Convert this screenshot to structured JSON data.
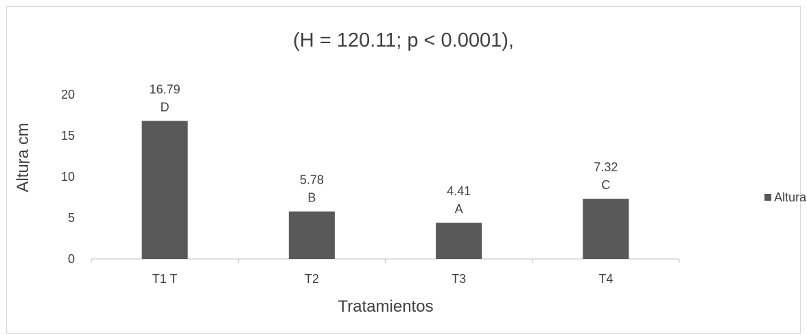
{
  "chart_data": {
    "type": "bar",
    "title": "(H = 120.11; p < 0.0001),",
    "xlabel": "Tratamientos",
    "ylabel": "Altura cm",
    "ylim": [
      0,
      20
    ],
    "yticks": [
      "0",
      "5",
      "10",
      "15",
      "20"
    ],
    "categories": [
      "T1 T",
      "T2",
      "T3",
      "T4"
    ],
    "series": [
      {
        "name": "Altura (cm)",
        "values": [
          16.79,
          5.78,
          4.41,
          7.32
        ],
        "value_labels": [
          "16.79",
          "5.78",
          "4.41",
          "7.32"
        ],
        "group_letters": [
          "D",
          "B",
          "A",
          "C"
        ],
        "color": "#595959"
      }
    ],
    "legend": {
      "position": "right"
    },
    "grid": false
  }
}
